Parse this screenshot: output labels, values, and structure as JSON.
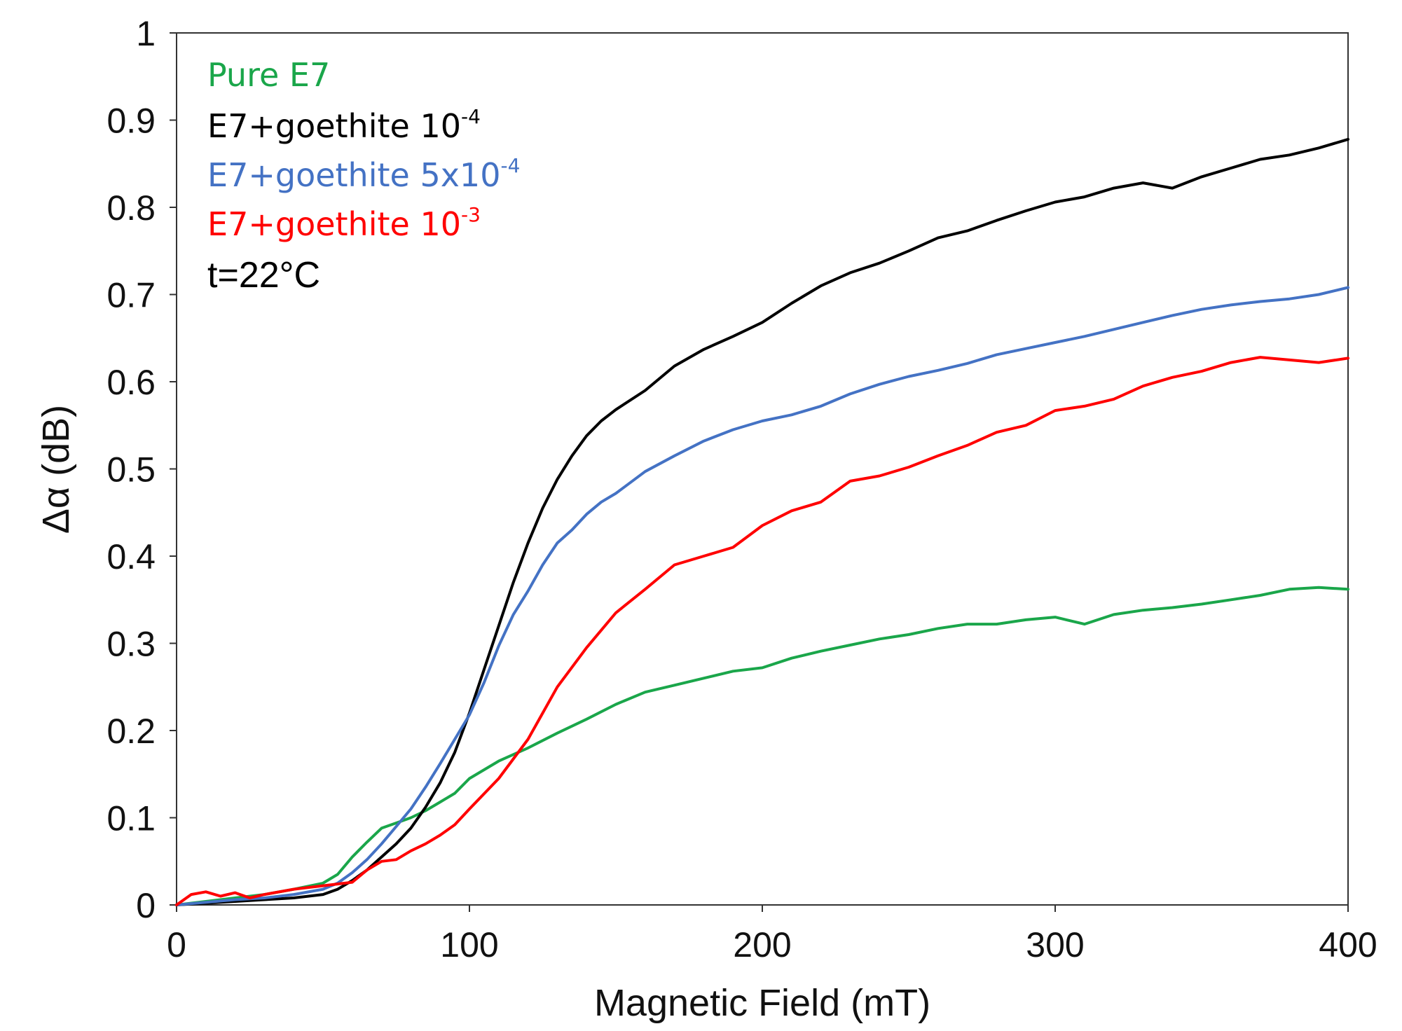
{
  "chart_data": {
    "type": "line",
    "title": "",
    "xlabel": "Magnetic Field (mT)",
    "ylabel": "Δα (dB)",
    "xlim": [
      0,
      400
    ],
    "ylim": [
      0,
      1
    ],
    "xticks": [
      0,
      100,
      200,
      300,
      400
    ],
    "yticks": [
      0,
      0.1,
      0.2,
      0.3,
      0.4,
      0.5,
      0.6,
      0.7,
      0.8,
      0.9,
      1
    ],
    "ytick_labels": [
      "0",
      "0.1",
      "0.2",
      "0.3",
      "0.4",
      "0.5",
      "0.6",
      "0.7",
      "0.8",
      "0.9",
      "1"
    ],
    "grid": false,
    "legend_position": "top-left",
    "annotation": "t=22°C",
    "series": [
      {
        "name": "Pure E7",
        "label_base": "Pure E7",
        "label_sup": "",
        "color": "#1aa64a",
        "x": [
          0,
          10,
          20,
          30,
          40,
          50,
          55,
          60,
          65,
          70,
          75,
          80,
          85,
          90,
          95,
          100,
          110,
          120,
          130,
          140,
          150,
          160,
          170,
          180,
          190,
          200,
          210,
          220,
          230,
          240,
          250,
          260,
          270,
          280,
          290,
          300,
          310,
          320,
          330,
          340,
          350,
          360,
          370,
          380,
          390,
          400
        ],
        "y": [
          0,
          0.004,
          0.008,
          0.012,
          0.018,
          0.025,
          0.035,
          0.055,
          0.072,
          0.088,
          0.094,
          0.1,
          0.108,
          0.118,
          0.128,
          0.145,
          0.165,
          0.18,
          0.197,
          0.213,
          0.23,
          0.244,
          0.252,
          0.26,
          0.268,
          0.272,
          0.283,
          0.291,
          0.298,
          0.305,
          0.31,
          0.317,
          0.322,
          0.322,
          0.327,
          0.33,
          0.322,
          0.333,
          0.338,
          0.341,
          0.345,
          0.35,
          0.355,
          0.362,
          0.364,
          0.362
        ]
      },
      {
        "name": "E7+goethite 10-4",
        "label_base": "E7+goethite 10",
        "label_sup": "-4",
        "color": "#000000",
        "x": [
          0,
          10,
          20,
          30,
          40,
          50,
          55,
          60,
          65,
          70,
          75,
          80,
          85,
          90,
          95,
          100,
          105,
          110,
          115,
          120,
          125,
          130,
          135,
          140,
          145,
          150,
          160,
          170,
          180,
          190,
          200,
          210,
          220,
          230,
          240,
          250,
          260,
          270,
          280,
          290,
          300,
          310,
          320,
          330,
          340,
          350,
          360,
          370,
          380,
          390,
          400
        ],
        "y": [
          0,
          0.002,
          0.004,
          0.006,
          0.008,
          0.012,
          0.018,
          0.028,
          0.04,
          0.055,
          0.07,
          0.088,
          0.112,
          0.14,
          0.175,
          0.22,
          0.27,
          0.32,
          0.37,
          0.415,
          0.455,
          0.488,
          0.515,
          0.538,
          0.555,
          0.568,
          0.59,
          0.618,
          0.637,
          0.652,
          0.668,
          0.69,
          0.71,
          0.725,
          0.736,
          0.75,
          0.765,
          0.773,
          0.785,
          0.796,
          0.806,
          0.812,
          0.822,
          0.828,
          0.822,
          0.835,
          0.845,
          0.855,
          0.86,
          0.868,
          0.878
        ]
      },
      {
        "name": "E7+goethite 5x10-4",
        "label_base": "E7+goethite 5x10",
        "label_sup": "-4",
        "color": "#4472c4",
        "x": [
          0,
          10,
          20,
          30,
          40,
          50,
          55,
          60,
          65,
          70,
          75,
          80,
          85,
          90,
          95,
          100,
          105,
          110,
          115,
          120,
          125,
          130,
          135,
          140,
          145,
          150,
          160,
          170,
          180,
          190,
          200,
          210,
          220,
          230,
          240,
          250,
          260,
          270,
          280,
          290,
          300,
          310,
          320,
          330,
          340,
          350,
          360,
          370,
          380,
          390,
          400
        ],
        "y": [
          0,
          0.003,
          0.006,
          0.008,
          0.012,
          0.018,
          0.025,
          0.037,
          0.052,
          0.07,
          0.09,
          0.11,
          0.135,
          0.162,
          0.19,
          0.218,
          0.255,
          0.297,
          0.333,
          0.36,
          0.39,
          0.415,
          0.43,
          0.448,
          0.462,
          0.472,
          0.497,
          0.515,
          0.532,
          0.545,
          0.555,
          0.562,
          0.572,
          0.586,
          0.597,
          0.606,
          0.613,
          0.621,
          0.631,
          0.638,
          0.645,
          0.652,
          0.66,
          0.668,
          0.676,
          0.683,
          0.688,
          0.692,
          0.695,
          0.7,
          0.708
        ]
      },
      {
        "name": "E7+goethite 10-3",
        "label_base": "E7+goethite 10",
        "label_sup": "-3",
        "color": "#ff0000",
        "x": [
          0,
          5,
          10,
          15,
          20,
          25,
          30,
          40,
          50,
          60,
          65,
          70,
          75,
          80,
          85,
          90,
          95,
          100,
          110,
          120,
          130,
          140,
          150,
          160,
          170,
          180,
          190,
          200,
          210,
          220,
          230,
          240,
          250,
          260,
          270,
          280,
          290,
          300,
          310,
          320,
          330,
          340,
          350,
          360,
          370,
          380,
          390,
          400
        ],
        "y": [
          0,
          0.012,
          0.015,
          0.01,
          0.014,
          0.008,
          0.012,
          0.018,
          0.022,
          0.026,
          0.04,
          0.05,
          0.052,
          0.062,
          0.07,
          0.08,
          0.092,
          0.11,
          0.145,
          0.19,
          0.25,
          0.295,
          0.335,
          0.362,
          0.39,
          0.4,
          0.41,
          0.435,
          0.452,
          0.462,
          0.486,
          0.492,
          0.502,
          0.515,
          0.527,
          0.542,
          0.55,
          0.567,
          0.572,
          0.58,
          0.595,
          0.605,
          0.612,
          0.622,
          0.628,
          0.625,
          0.622,
          0.627
        ]
      }
    ]
  }
}
